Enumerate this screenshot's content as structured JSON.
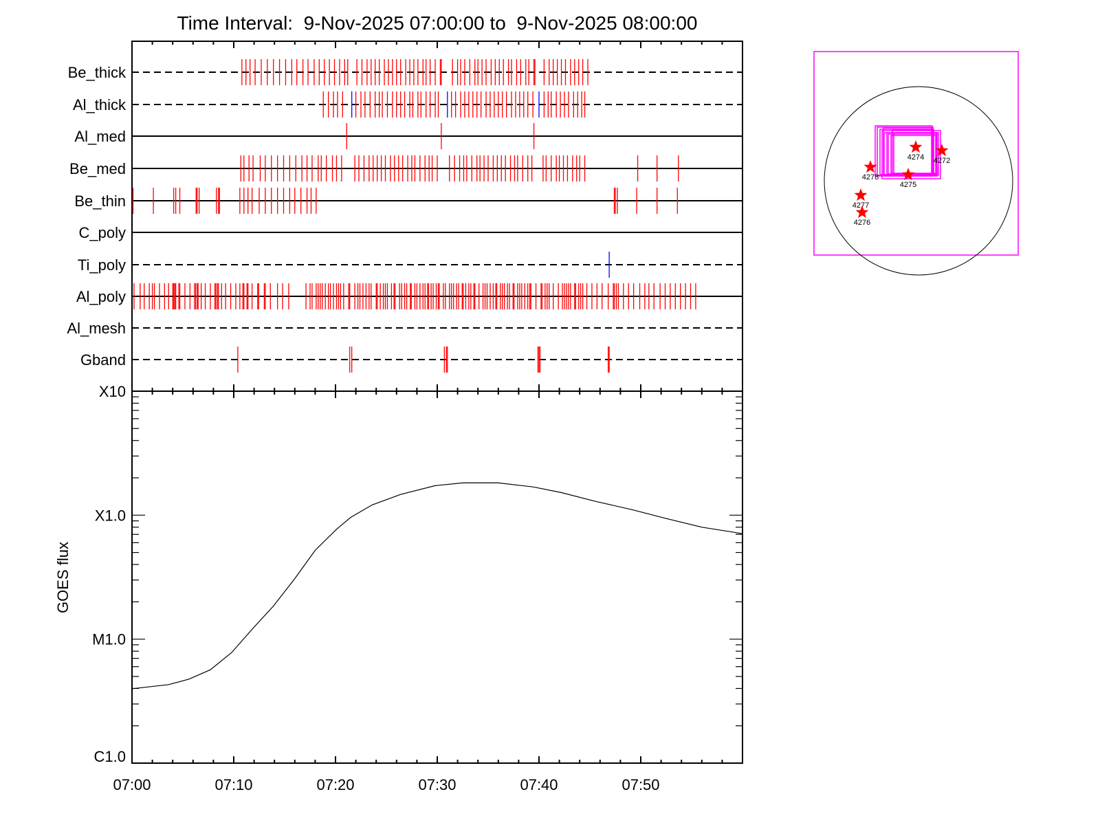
{
  "chart_data": [
    {
      "type": "event-raster",
      "title": "Time Interval:  9-Nov-2025 07:00:00 to  9-Nov-2025 08:00:00",
      "x_unit": "minutes after 07:00",
      "xlim": [
        0,
        60
      ],
      "rows": [
        {
          "name": "Be_thick",
          "line": "dashed",
          "ticks": [
            10.8,
            11.2,
            11.6,
            12.1,
            12.7,
            13.3,
            13.9,
            14.5,
            15.1,
            15.7,
            16.2,
            16.8,
            17.3,
            17.9,
            18.4,
            18.9,
            19.4,
            19.9,
            20.4,
            20.9,
            21.2,
            22.1,
            22.6,
            23.1,
            23.5,
            23.9,
            24.3,
            24.8,
            25.2,
            25.6,
            26.0,
            26.4,
            26.9,
            27.3,
            27.7,
            28.1,
            28.6,
            28.9,
            29.3,
            29.8,
            30.3,
            30.4,
            31.5,
            32.0,
            32.3,
            32.7,
            33.2,
            33.7,
            34.0,
            34.4,
            34.8,
            35.3,
            35.7,
            36.1,
            36.5,
            37.0,
            37.3,
            37.8,
            38.2,
            38.7,
            39.0,
            39.5,
            39.6,
            40.5,
            41.0,
            41.4,
            41.8,
            42.2,
            42.6,
            43.1,
            43.5,
            43.9,
            44.3,
            44.8
          ],
          "blue_ticks": []
        },
        {
          "name": "Al_thick",
          "line": "dashed",
          "ticks": [
            18.8,
            19.3,
            19.8,
            20.2,
            20.7,
            22.0,
            22.5,
            22.9,
            23.4,
            23.9,
            24.3,
            24.6,
            25.1,
            25.6,
            26.0,
            26.4,
            26.8,
            27.3,
            27.6,
            28.1,
            28.4,
            28.9,
            29.3,
            29.8,
            30.1,
            31.4,
            31.8,
            32.3,
            32.7,
            33.1,
            33.5,
            33.9,
            34.3,
            34.8,
            35.2,
            35.6,
            36.0,
            36.4,
            36.8,
            37.3,
            37.7,
            38.1,
            38.5,
            38.9,
            39.4,
            40.5,
            40.9,
            41.2,
            41.7,
            42.1,
            42.5,
            42.9,
            43.4,
            43.8,
            44.2,
            44.5
          ],
          "blue_ticks": [
            21.6,
            31.0,
            40.0
          ]
        },
        {
          "name": "Al_med",
          "line": "solid",
          "ticks": [
            21.1,
            30.4,
            39.5
          ],
          "blue_ticks": []
        },
        {
          "name": "Be_med",
          "line": "solid",
          "ticks": [
            10.7,
            11.0,
            11.5,
            11.9,
            12.6,
            13.1,
            13.7,
            14.3,
            14.9,
            15.5,
            16.1,
            16.7,
            17.2,
            17.7,
            18.3,
            18.6,
            19.1,
            19.7,
            20.1,
            20.6,
            21.9,
            22.3,
            22.8,
            23.3,
            23.7,
            24.1,
            24.5,
            24.9,
            25.4,
            25.8,
            26.2,
            26.6,
            27.1,
            27.5,
            27.8,
            28.3,
            28.8,
            29.2,
            29.5,
            30.0,
            31.2,
            31.7,
            32.2,
            32.6,
            32.9,
            33.4,
            33.9,
            34.2,
            34.6,
            35.0,
            35.5,
            35.9,
            36.3,
            36.7,
            37.2,
            37.6,
            37.9,
            38.4,
            38.9,
            39.3,
            40.4,
            40.7,
            41.2,
            41.7,
            42.0,
            42.4,
            42.8,
            43.3,
            43.7,
            44.0,
            44.5,
            49.7,
            51.6,
            53.7
          ],
          "blue_ticks": []
        },
        {
          "name": "Be_thin",
          "line": "solid",
          "ticks": [
            0.1,
            2.1,
            4.1,
            4.3,
            4.7,
            6.3,
            6.4,
            6.6,
            8.3,
            8.5,
            8.6,
            10.6,
            11.0,
            11.4,
            11.8,
            12.5,
            13.1,
            13.7,
            14.3,
            14.9,
            15.5,
            16.0,
            16.6,
            17.2,
            17.6,
            18.1,
            47.4,
            47.5,
            47.7,
            49.6,
            51.6,
            53.6
          ],
          "blue_ticks": []
        },
        {
          "name": "C_poly",
          "line": "solid",
          "ticks": [],
          "blue_ticks": []
        },
        {
          "name": "Ti_poly",
          "line": "dashed",
          "ticks": [],
          "blue_ticks": [
            46.9
          ]
        },
        {
          "name": "Al_poly",
          "line": "solid",
          "ticks": [
            0.2,
            0.8,
            1.2,
            1.7,
            2.0,
            2.2,
            2.7,
            3.2,
            3.6,
            4.0,
            4.1,
            4.2,
            4.3,
            4.6,
            4.7,
            5.2,
            5.7,
            6.15,
            6.25,
            6.4,
            6.5,
            6.8,
            7.2,
            7.7,
            8.15,
            8.25,
            8.4,
            8.5,
            8.8,
            9.2,
            9.7,
            10.2,
            10.6,
            10.9,
            11.0,
            11.3,
            11.4,
            11.8,
            12.35,
            12.45,
            13.0,
            13.1,
            13.6,
            14.3,
            14.8,
            15.4,
            17.1,
            17.5,
            17.7,
            18.1,
            18.3,
            18.5,
            18.7,
            19.0,
            19.3,
            19.5,
            19.8,
            20.1,
            20.3,
            20.5,
            20.8,
            21.3,
            21.4,
            21.9,
            22.2,
            22.4,
            22.7,
            23.0,
            23.3,
            23.5,
            24.0,
            24.1,
            24.4,
            24.7,
            24.9,
            25.1,
            25.5,
            25.75,
            25.85,
            26.3,
            26.5,
            26.8,
            27.0,
            27.35,
            27.45,
            27.8,
            28.0,
            28.3,
            28.6,
            28.8,
            29.05,
            29.15,
            29.4,
            29.6,
            29.9,
            30.1,
            30.2,
            30.6,
            30.8,
            31.2,
            31.4,
            31.6,
            31.9,
            32.1,
            32.45,
            32.55,
            32.8,
            33.1,
            33.3,
            33.6,
            33.7,
            34.1,
            34.5,
            34.7,
            34.9,
            35.2,
            35.5,
            35.75,
            35.85,
            36.2,
            36.4,
            36.6,
            36.9,
            37.1,
            37.45,
            37.55,
            37.9,
            38.1,
            38.3,
            38.6,
            38.9,
            39.1,
            39.2,
            39.7,
            40.2,
            40.3,
            40.6,
            40.8,
            41.0,
            41.4,
            41.9,
            42.3,
            42.5,
            42.7,
            42.9,
            43.1,
            43.5,
            43.6,
            43.9,
            44.1,
            44.3,
            44.7,
            45.2,
            45.7,
            46.2,
            46.8,
            47.3,
            47.4,
            47.6,
            47.8,
            48.3,
            48.8,
            49.3,
            49.9,
            50.4,
            50.8,
            51.3,
            51.9,
            52.4,
            52.9,
            53.4,
            53.9,
            54.4,
            54.9,
            55.4
          ],
          "blue_ticks": []
        },
        {
          "name": "Al_mesh",
          "line": "dashed",
          "ticks": [],
          "blue_ticks": []
        },
        {
          "name": "Gband",
          "line": "dashed",
          "ticks": [
            10.4,
            21.4,
            21.6,
            30.7,
            30.9,
            31.0,
            39.9,
            40.0,
            40.1,
            46.8,
            46.9
          ],
          "blue_ticks": []
        }
      ]
    },
    {
      "type": "line",
      "ylabel": "GOES flux",
      "yscale": "log",
      "ylim": [
        1e-06,
        0.001
      ],
      "ytick_values": [
        1e-06,
        1e-05,
        0.0001,
        0.001
      ],
      "ytick_labels": [
        "C1.0",
        "M1.0",
        "X1.0",
        "X10"
      ],
      "xlim": [
        0,
        60
      ],
      "xtick_values": [
        0,
        10,
        20,
        30,
        40,
        50
      ],
      "xtick_labels": [
        "07:00",
        "07:10",
        "07:20",
        "07:30",
        "07:40",
        "07:50"
      ],
      "series": [
        {
          "name": "GOES flux",
          "x": [
            0,
            3.6,
            5.6,
            7.7,
            9.8,
            11.8,
            13.9,
            16.0,
            18.0,
            20.1,
            21.5,
            23.6,
            26.4,
            29.8,
            32.5,
            36.0,
            39.4,
            42.2,
            45.6,
            49.1,
            52.5,
            56.0,
            60
          ],
          "y": [
            3.98e-06,
            4.3e-06,
            4.76e-06,
            5.66e-06,
            7.8e-06,
            1.2e-05,
            1.85e-05,
            3.08e-05,
            5.2e-05,
            7.7e-05,
            9.6e-05,
            0.000121,
            0.000147,
            0.000173,
            0.000182,
            0.000182,
            0.000169,
            0.000152,
            0.000129,
            0.000111,
            9.4e-05,
            8e-05,
            7.1e-05
          ]
        }
      ]
    }
  ],
  "map": {
    "active_regions": [
      "4274",
      "4272",
      "4278",
      "4275",
      "4277",
      "4276"
    ]
  },
  "colors": {
    "event": "#ff0000",
    "event_alt": "#0000ff",
    "fov": "#ff00ff",
    "axis": "#000000"
  }
}
